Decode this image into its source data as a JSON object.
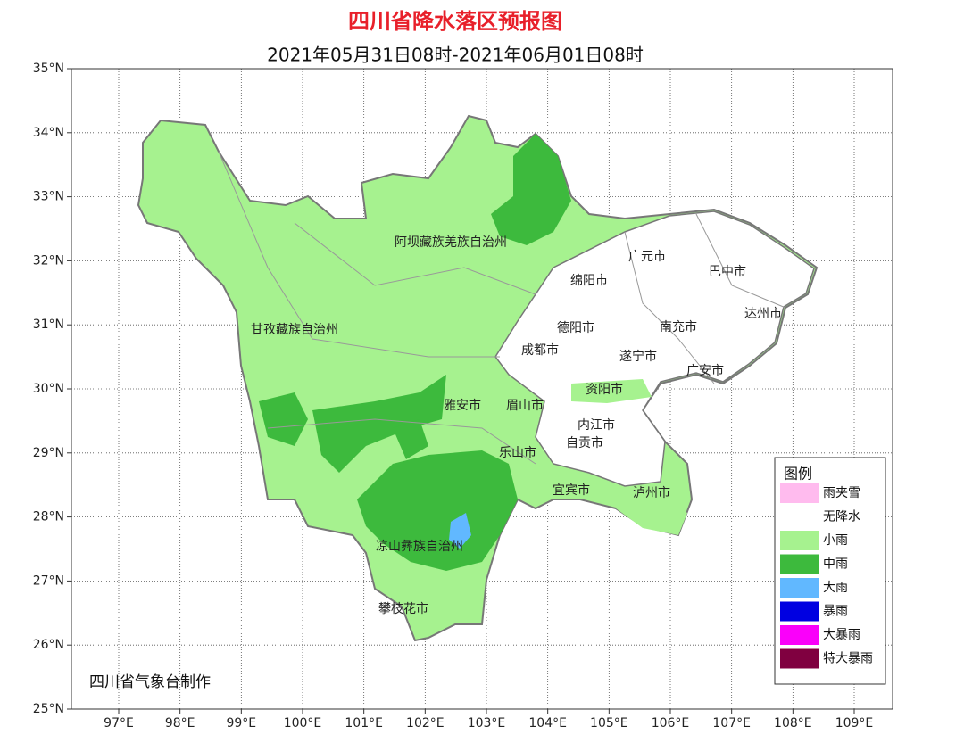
{
  "map": {
    "title": "四川省降水落区预报图",
    "subtitle": "2021年05月31日08时-2021年06月01日08时",
    "lat_ticks": [
      {
        "value": 35,
        "label": "35°N"
      },
      {
        "value": 34,
        "label": "34°N"
      },
      {
        "value": 33,
        "label": "33°N"
      },
      {
        "value": 32,
        "label": "32°N"
      },
      {
        "value": 31,
        "label": "31°N"
      },
      {
        "value": 30,
        "label": "30°N"
      },
      {
        "value": 29,
        "label": "29°N"
      },
      {
        "value": 28,
        "label": "28°N"
      },
      {
        "value": 27,
        "label": "27°N"
      },
      {
        "value": 26,
        "label": "26°N"
      },
      {
        "value": 25,
        "label": "25°N"
      }
    ],
    "lon_ticks": [
      {
        "value": 97,
        "label": "97°E"
      },
      {
        "value": 98,
        "label": "98°E"
      },
      {
        "value": 99,
        "label": "99°E"
      },
      {
        "value": 100,
        "label": "100°E"
      },
      {
        "value": 101,
        "label": "101°E"
      },
      {
        "value": 102,
        "label": "102°E"
      },
      {
        "value": 103,
        "label": "103°E"
      },
      {
        "value": 104,
        "label": "104°E"
      },
      {
        "value": 105,
        "label": "105°E"
      },
      {
        "value": 106,
        "label": "106°E"
      },
      {
        "value": 107,
        "label": "107°E"
      },
      {
        "value": 108,
        "label": "108°E"
      },
      {
        "value": 109,
        "label": "109°E"
      }
    ],
    "regions": [
      "阿坝藏族羌族自治州",
      "甘孜藏族自治州",
      "雅安市",
      "眉山市",
      "乐山市",
      "凉山彝族自治州",
      "攀枝花市",
      "成都市",
      "德阳市",
      "绵阳市",
      "广元市",
      "巴中市",
      "南充市",
      "达州市",
      "遂宁市",
      "广安市",
      "资阳市",
      "内江市",
      "自贡市",
      "宜宾市",
      "泸州市"
    ],
    "legend": {
      "title": "图例",
      "items": [
        {
          "label": "雨夹雪",
          "color": "#ffbbee"
        },
        {
          "label": "无降水",
          "color": "#ffffff"
        },
        {
          "label": "小雨",
          "color": "#a6f28f"
        },
        {
          "label": "中雨",
          "color": "#3dba3d"
        },
        {
          "label": "大雨",
          "color": "#61b8ff"
        },
        {
          "label": "暴雨",
          "color": "#0000e1"
        },
        {
          "label": "大暴雨",
          "color": "#fa00fa"
        },
        {
          "label": "特大暴雨",
          "color": "#800040"
        }
      ]
    },
    "credit": "四川省气象台制作"
  }
}
